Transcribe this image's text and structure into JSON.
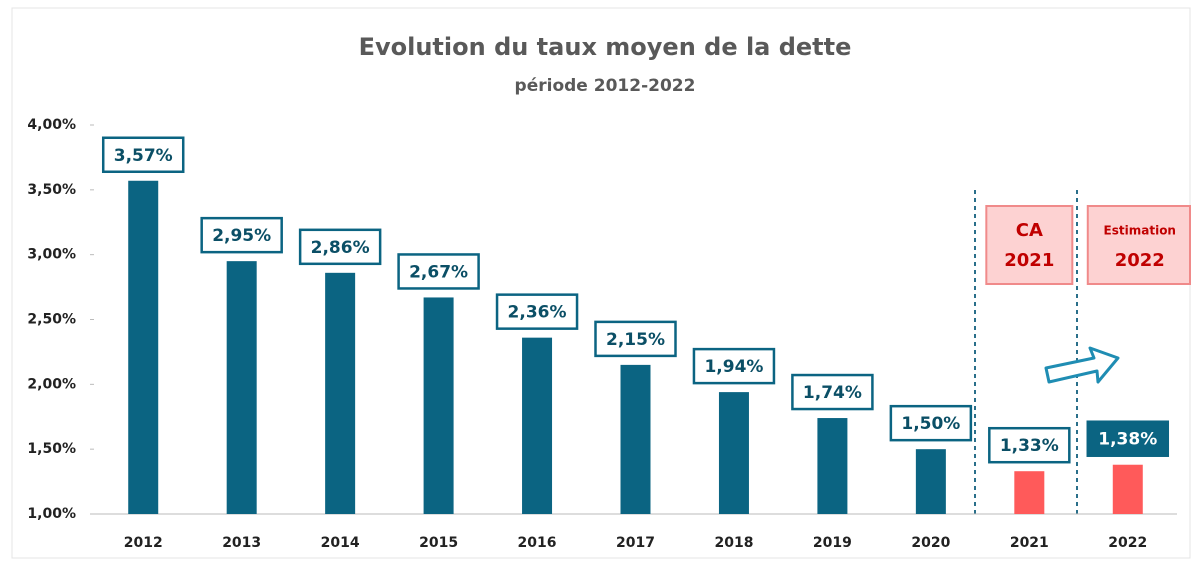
{
  "chart_data": {
    "type": "bar",
    "title": "Evolution du taux moyen de la dette",
    "subtitle": "période 2012-2022",
    "categories": [
      "2012",
      "2013",
      "2014",
      "2015",
      "2016",
      "2017",
      "2018",
      "2019",
      "2020",
      "2021",
      "2022"
    ],
    "values": [
      3.57,
      2.95,
      2.86,
      2.67,
      2.36,
      2.15,
      1.94,
      1.74,
      1.5,
      1.33,
      1.38
    ],
    "value_labels": [
      "3,57%",
      "2,95%",
      "2,86%",
      "2,67%",
      "2,36%",
      "2,15%",
      "1,94%",
      "1,74%",
      "1,50%",
      "1,33%",
      "1,38%"
    ],
    "colors": [
      "#0b6482",
      "#0b6482",
      "#0b6482",
      "#0b6482",
      "#0b6482",
      "#0b6482",
      "#0b6482",
      "#0b6482",
      "#0b6482",
      "#ff5a5a",
      "#ff5a5a"
    ],
    "label_fills": [
      "#ffffff",
      "#ffffff",
      "#ffffff",
      "#ffffff",
      "#ffffff",
      "#ffffff",
      "#ffffff",
      "#ffffff",
      "#ffffff",
      "#ffffff",
      "#0b6482"
    ],
    "ylim": [
      1.0,
      4.0
    ],
    "yticks": [
      {
        "value": 1.0,
        "label": "1,00%"
      },
      {
        "value": 1.5,
        "label": "1,50%"
      },
      {
        "value": 2.0,
        "label": "2,00%"
      },
      {
        "value": 2.5,
        "label": "2,50%"
      },
      {
        "value": 3.0,
        "label": "3,00%"
      },
      {
        "value": 3.5,
        "label": "3,50%"
      },
      {
        "value": 4.0,
        "label": "4,00%"
      }
    ],
    "annotations": [
      {
        "category": 9,
        "lines": [
          "CA",
          "2021"
        ]
      },
      {
        "category": 10,
        "lines": [
          "Estimation",
          "2022"
        ]
      }
    ]
  }
}
